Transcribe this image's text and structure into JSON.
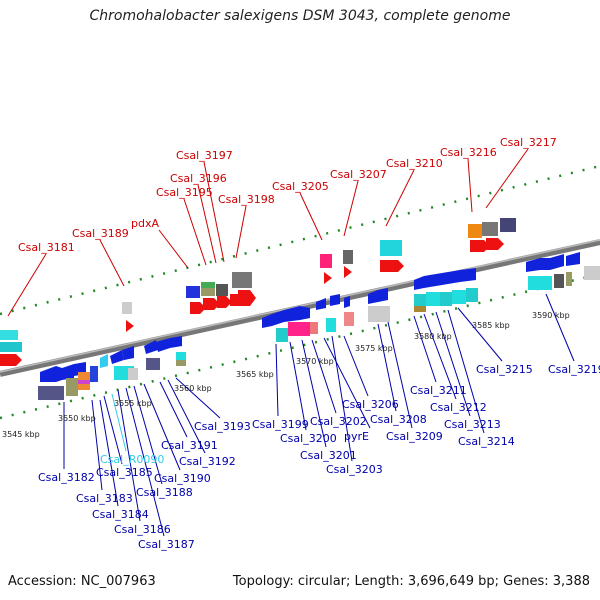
{
  "title": "Chromohalobacter salexigens DSM 3043, complete genome",
  "footer": {
    "accession": "Accession: NC_007963",
    "summary": "Topology: circular; Length: 3,696,649 bp; Genes: 3,388"
  },
  "colors": {
    "forward_label": "#cc0000",
    "reverse_label": "#0000aa",
    "rna_label": "#33ccee",
    "backbone": "#888888",
    "tick": "#228822"
  },
  "scale": [
    "3545 kbp",
    "3550 kbp",
    "3555 kbp",
    "3560 kbp",
    "3565 kbp",
    "3570 kbp",
    "3575 kbp",
    "3580 kbp",
    "3585 kbp",
    "3590 kbp"
  ],
  "forward_labels": [
    "Csal_3181",
    "Csal_3189",
    "pdxA",
    "Csal_3195",
    "Csal_3196",
    "Csal_3197",
    "Csal_3198",
    "Csal_3205",
    "Csal_3207",
    "Csal_3210",
    "Csal_3216",
    "Csal_3217"
  ],
  "reverse_labels": [
    "Csal_3182",
    "Csal_3183",
    "Csal_3184",
    "Csal_3185",
    "Csal_R0090",
    "Csal_3186",
    "Csal_3187",
    "Csal_3188",
    "Csal_3190",
    "Csal_3191",
    "Csal_3192",
    "Csal_3193",
    "Csal_3199",
    "Csal_3200",
    "Csal_3201",
    "Csal_3202",
    "pyrE",
    "Csal_3203",
    "Csal_3206",
    "Csal_3208",
    "Csal_3209",
    "Csal_3211",
    "Csal_3212",
    "Csal_3213",
    "Csal_3214",
    "Csal_3215",
    "Csal_3219"
  ]
}
